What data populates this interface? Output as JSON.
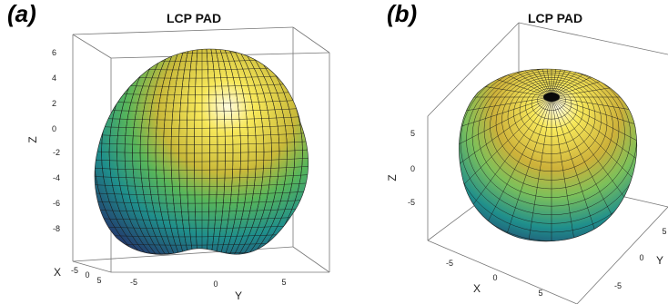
{
  "chart_data": [
    {
      "panel": "(a)",
      "type": "surface3d",
      "title": "LCP PAD",
      "zlabel": "Z",
      "ylabel": "Y",
      "xlabel": "X",
      "zticks": [
        "6",
        "4",
        "2",
        "0",
        "-2",
        "-4",
        "-6",
        "-8"
      ],
      "yticks": [
        "-5",
        "0",
        "5"
      ],
      "xticks": [
        "-5",
        "0",
        "5"
      ],
      "zlim": [
        -10,
        7
      ],
      "colormap": [
        "#2c3e7a",
        "#1f8f8c",
        "#58b65a",
        "#c9c934",
        "#f7e85a",
        "#fffbe0"
      ]
    },
    {
      "panel": "(b)",
      "type": "surface3d",
      "title": "LCP PAD",
      "zlabel": "Z",
      "ylabel": "Y",
      "xlabel": "X",
      "zticks": [
        "5",
        "0",
        "-5"
      ],
      "xticks": [
        "-5",
        "0",
        "5"
      ],
      "yticks": [
        "-5",
        "0",
        "5"
      ],
      "colormap": [
        "#2c3e7a",
        "#1f8f8c",
        "#58b65a",
        "#c9c934",
        "#f7e85a",
        "#fffbe0"
      ]
    }
  ]
}
